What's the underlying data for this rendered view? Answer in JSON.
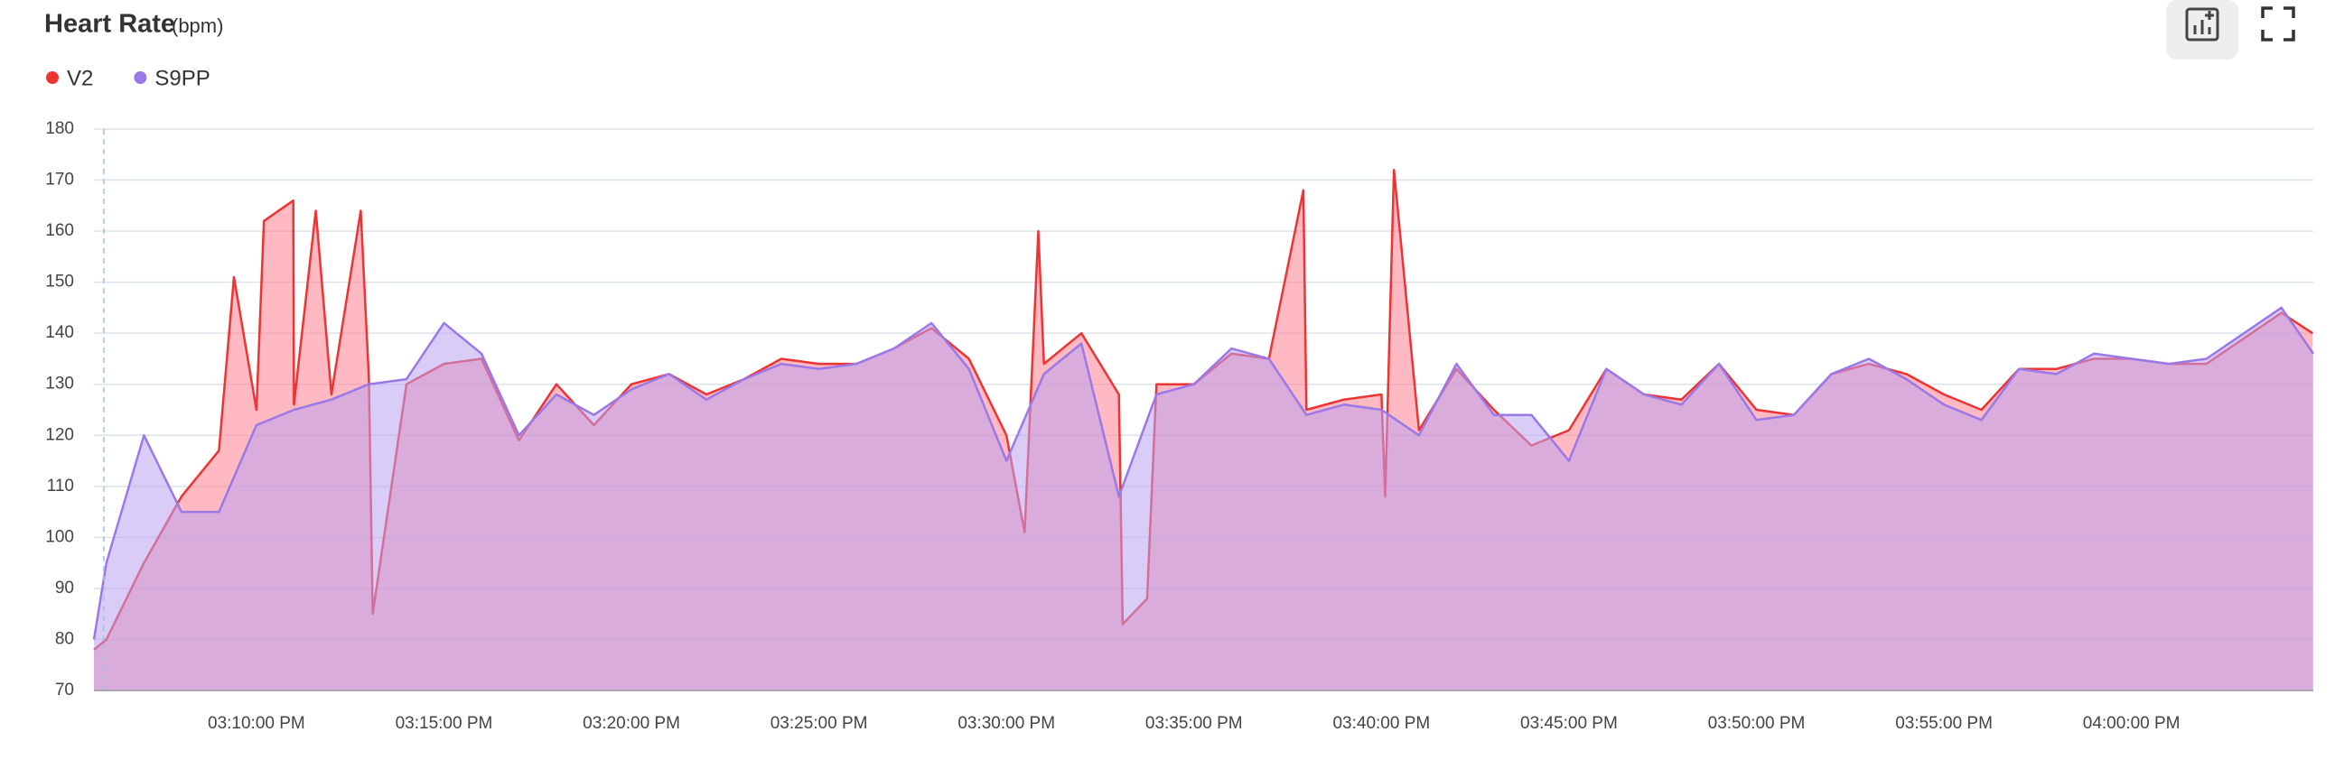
{
  "chart_data": {
    "type": "area",
    "title": "Heart Rate",
    "subtitle": "(bpm)",
    "ylim": [
      70,
      180
    ],
    "yticks": [
      70,
      80,
      90,
      100,
      110,
      120,
      130,
      140,
      150,
      160,
      170,
      180
    ],
    "xlim": [
      "03:05:40 PM",
      "04:04:51 PM"
    ],
    "xticks": [
      "03:10:00 PM",
      "03:15:00 PM",
      "03:20:00 PM",
      "03:25:00 PM",
      "03:30:00 PM",
      "03:35:00 PM",
      "03:40:00 PM",
      "03:45:00 PM",
      "03:50:00 PM",
      "03:55:00 PM",
      "04:00:00 PM"
    ],
    "grid": true,
    "series": [
      {
        "name": "V2",
        "color": "#ee3333",
        "fill": "#ff7f8f",
        "x": [
          "03:05:40 PM",
          "03:06:00 PM",
          "03:07:00 PM",
          "03:08:00 PM",
          "03:09:00 PM",
          "03:09:24 PM",
          "03:10:00 PM",
          "03:10:12 PM",
          "03:10:59 PM",
          "03:11:00 PM",
          "03:11:35 PM",
          "03:12:00 PM",
          "03:12:47 PM",
          "03:13:00 PM",
          "03:13:06 PM",
          "03:14:00 PM",
          "03:15:00 PM",
          "03:16:00 PM",
          "03:17:00 PM",
          "03:18:00 PM",
          "03:19:00 PM",
          "03:20:00 PM",
          "03:21:00 PM",
          "03:22:00 PM",
          "03:23:00 PM",
          "03:24:00 PM",
          "03:25:00 PM",
          "03:26:00 PM",
          "03:27:00 PM",
          "03:28:00 PM",
          "03:29:00 PM",
          "03:30:00 PM",
          "03:30:29 PM",
          "03:30:51 PM",
          "03:31:00 PM",
          "03:32:00 PM",
          "03:33:00 PM",
          "03:33:06 PM",
          "03:33:45 PM",
          "03:34:00 PM",
          "03:35:00 PM",
          "03:36:00 PM",
          "03:37:00 PM",
          "03:37:55 PM",
          "03:38:00 PM",
          "03:39:00 PM",
          "03:40:00 PM",
          "03:40:06 PM",
          "03:40:20 PM",
          "03:41:00 PM",
          "03:42:00 PM",
          "03:43:00 PM",
          "03:44:00 PM",
          "03:45:00 PM",
          "03:46:00 PM",
          "03:47:00 PM",
          "03:48:00 PM",
          "03:49:00 PM",
          "03:50:00 PM",
          "03:51:00 PM",
          "03:52:00 PM",
          "03:53:00 PM",
          "03:54:00 PM",
          "03:55:00 PM",
          "03:56:00 PM",
          "03:57:00 PM",
          "03:58:00 PM",
          "03:59:00 PM",
          "04:00:00 PM",
          "04:01:00 PM",
          "04:02:00 PM",
          "04:03:00 PM",
          "04:04:00 PM",
          "04:04:50 PM"
        ],
        "values": [
          78,
          80,
          95,
          108,
          117,
          151,
          125,
          162,
          166,
          126,
          164,
          128,
          164,
          131,
          85,
          130,
          134,
          135,
          119,
          130,
          122,
          130,
          132,
          128,
          131,
          135,
          134,
          134,
          137,
          141,
          135,
          120,
          101,
          160,
          134,
          140,
          128,
          83,
          88,
          130,
          130,
          136,
          135,
          168,
          125,
          127,
          128,
          108,
          172,
          121,
          133,
          125,
          118,
          121,
          133,
          128,
          127,
          134,
          125,
          124,
          132,
          134,
          132,
          128,
          125,
          133,
          133,
          135,
          135,
          134,
          134,
          139,
          144,
          140
        ]
      },
      {
        "name": "S9PP",
        "color": "#9a78e8",
        "fill": "#b9a2f0",
        "x": [
          "03:05:40 PM",
          "03:06:00 PM",
          "03:07:00 PM",
          "03:08:00 PM",
          "03:09:00 PM",
          "03:10:00 PM",
          "03:11:00 PM",
          "03:12:00 PM",
          "03:13:00 PM",
          "03:14:00 PM",
          "03:15:00 PM",
          "03:16:00 PM",
          "03:17:00 PM",
          "03:18:00 PM",
          "03:19:00 PM",
          "03:20:00 PM",
          "03:21:00 PM",
          "03:22:00 PM",
          "03:23:00 PM",
          "03:24:00 PM",
          "03:25:00 PM",
          "03:26:00 PM",
          "03:27:00 PM",
          "03:28:00 PM",
          "03:29:00 PM",
          "03:30:00 PM",
          "03:31:00 PM",
          "03:32:00 PM",
          "03:33:00 PM",
          "03:34:00 PM",
          "03:35:00 PM",
          "03:36:00 PM",
          "03:37:00 PM",
          "03:38:00 PM",
          "03:39:00 PM",
          "03:40:00 PM",
          "03:41:00 PM",
          "03:42:00 PM",
          "03:43:00 PM",
          "03:44:00 PM",
          "03:45:00 PM",
          "03:46:00 PM",
          "03:47:00 PM",
          "03:48:00 PM",
          "03:49:00 PM",
          "03:50:00 PM",
          "03:51:00 PM",
          "03:52:00 PM",
          "03:53:00 PM",
          "03:54:00 PM",
          "03:55:00 PM",
          "03:56:00 PM",
          "03:57:00 PM",
          "03:58:00 PM",
          "03:59:00 PM",
          "04:00:00 PM",
          "04:01:00 PM",
          "04:02:00 PM",
          "04:03:00 PM",
          "04:04:00 PM",
          "04:04:51 PM"
        ],
        "values": [
          80,
          95,
          120,
          105,
          105,
          122,
          125,
          127,
          130,
          131,
          142,
          136,
          120,
          128,
          124,
          129,
          132,
          127,
          131,
          134,
          133,
          134,
          137,
          142,
          133,
          115,
          132,
          138,
          108,
          128,
          130,
          137,
          135,
          124,
          126,
          125,
          120,
          134,
          124,
          124,
          115,
          133,
          128,
          126,
          134,
          123,
          124,
          132,
          135,
          131,
          126,
          123,
          133,
          132,
          136,
          135,
          134,
          135,
          140,
          145,
          136
        ]
      }
    ]
  }
}
